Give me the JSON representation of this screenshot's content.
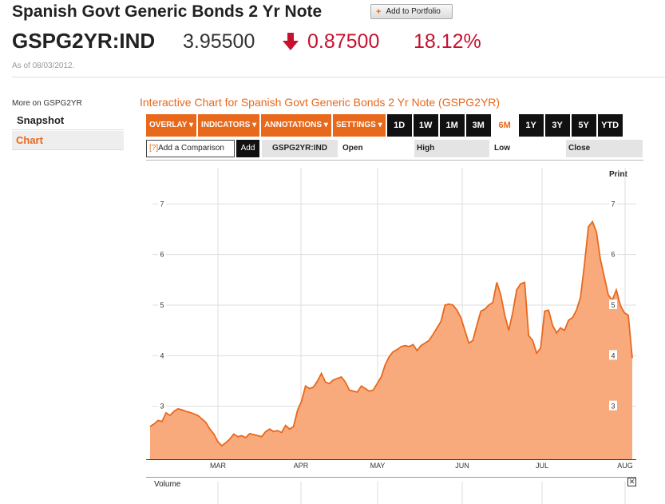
{
  "header": {
    "title": "Spanish Govt Generic Bonds 2 Yr Note",
    "portfolio_button": "Add to Portfolio",
    "ticker": "GSPG2YR:IND",
    "price": "3.95500",
    "change": "0.87500",
    "change_pct": "18.12%",
    "as_of": "As of 08/03/2012."
  },
  "sidebar": {
    "more_on": "More on GSPG2YR",
    "items": [
      {
        "label": "Snapshot"
      },
      {
        "label": "Chart"
      }
    ]
  },
  "chart_panel": {
    "heading": "Interactive Chart for Spanish Govt Generic Bonds 2 Yr Note (GSPG2YR)",
    "menus": [
      "OVERLAY ▾",
      "INDICATORS ▾",
      "ANNOTATIONS ▾",
      "SETTINGS ▾"
    ],
    "ranges": [
      "1D",
      "1W",
      "1M",
      "3M",
      "6M",
      "1Y",
      "3Y",
      "5Y",
      "YTD"
    ],
    "active_range": "6M",
    "compare_placeholder": "Add a Comparison",
    "compare_hint": "[?]",
    "add_label": "Add",
    "symbol": "GSPG2YR:IND",
    "open_label": "Open",
    "high_label": "High",
    "low_label": "Low",
    "close_label": "Close",
    "print_label": "Print",
    "volume_label": "Volume",
    "volume_close": "✕"
  },
  "colors": {
    "accent": "#e8681c",
    "negative": "#c8102e",
    "area_fill": "#f9aa7c",
    "area_line": "#e8681c"
  },
  "chart_data": {
    "type": "area",
    "x_ticks": [
      "MAR",
      "APR",
      "MAY",
      "JUN",
      "JUL",
      "AUG"
    ],
    "y_ticks": [
      3,
      4,
      5,
      6,
      7
    ],
    "ylim": [
      2.0,
      7.4
    ],
    "grid": true,
    "series": [
      {
        "values": [
          2.6,
          2.65,
          2.72,
          2.7,
          2.87,
          2.82,
          2.9,
          2.95,
          2.93,
          2.9,
          2.88,
          2.85,
          2.82,
          2.75,
          2.68,
          2.55,
          2.45,
          2.3,
          2.22,
          2.28,
          2.35,
          2.45,
          2.4,
          2.42,
          2.38,
          2.46,
          2.44,
          2.42,
          2.4,
          2.5,
          2.55,
          2.5,
          2.52,
          2.48,
          2.62,
          2.55,
          2.6,
          2.92,
          3.1,
          3.4,
          3.35,
          3.38,
          3.5,
          3.65,
          3.48,
          3.45,
          3.52,
          3.55,
          3.58,
          3.48,
          3.32,
          3.3,
          3.28,
          3.4,
          3.35,
          3.3,
          3.32,
          3.45,
          3.58,
          3.82,
          3.98,
          4.08,
          4.12,
          4.18,
          4.2,
          4.18,
          4.22,
          4.1,
          4.2,
          4.25,
          4.3,
          4.42,
          4.55,
          4.68,
          5.0,
          5.02,
          5.0,
          4.9,
          4.75,
          4.5,
          4.25,
          4.3,
          4.6,
          4.88,
          4.92,
          5.0,
          5.05,
          5.45,
          5.2,
          4.8,
          4.5,
          4.85,
          5.3,
          5.42,
          5.45,
          4.4,
          4.3,
          4.05,
          4.15,
          4.88,
          4.9,
          4.6,
          4.45,
          4.55,
          4.5,
          4.7,
          4.75,
          4.9,
          5.15,
          5.8,
          6.55,
          6.65,
          6.45,
          5.9,
          5.55,
          5.2,
          5.1,
          5.3,
          5.0,
          4.85,
          4.8,
          3.95
        ]
      }
    ]
  }
}
